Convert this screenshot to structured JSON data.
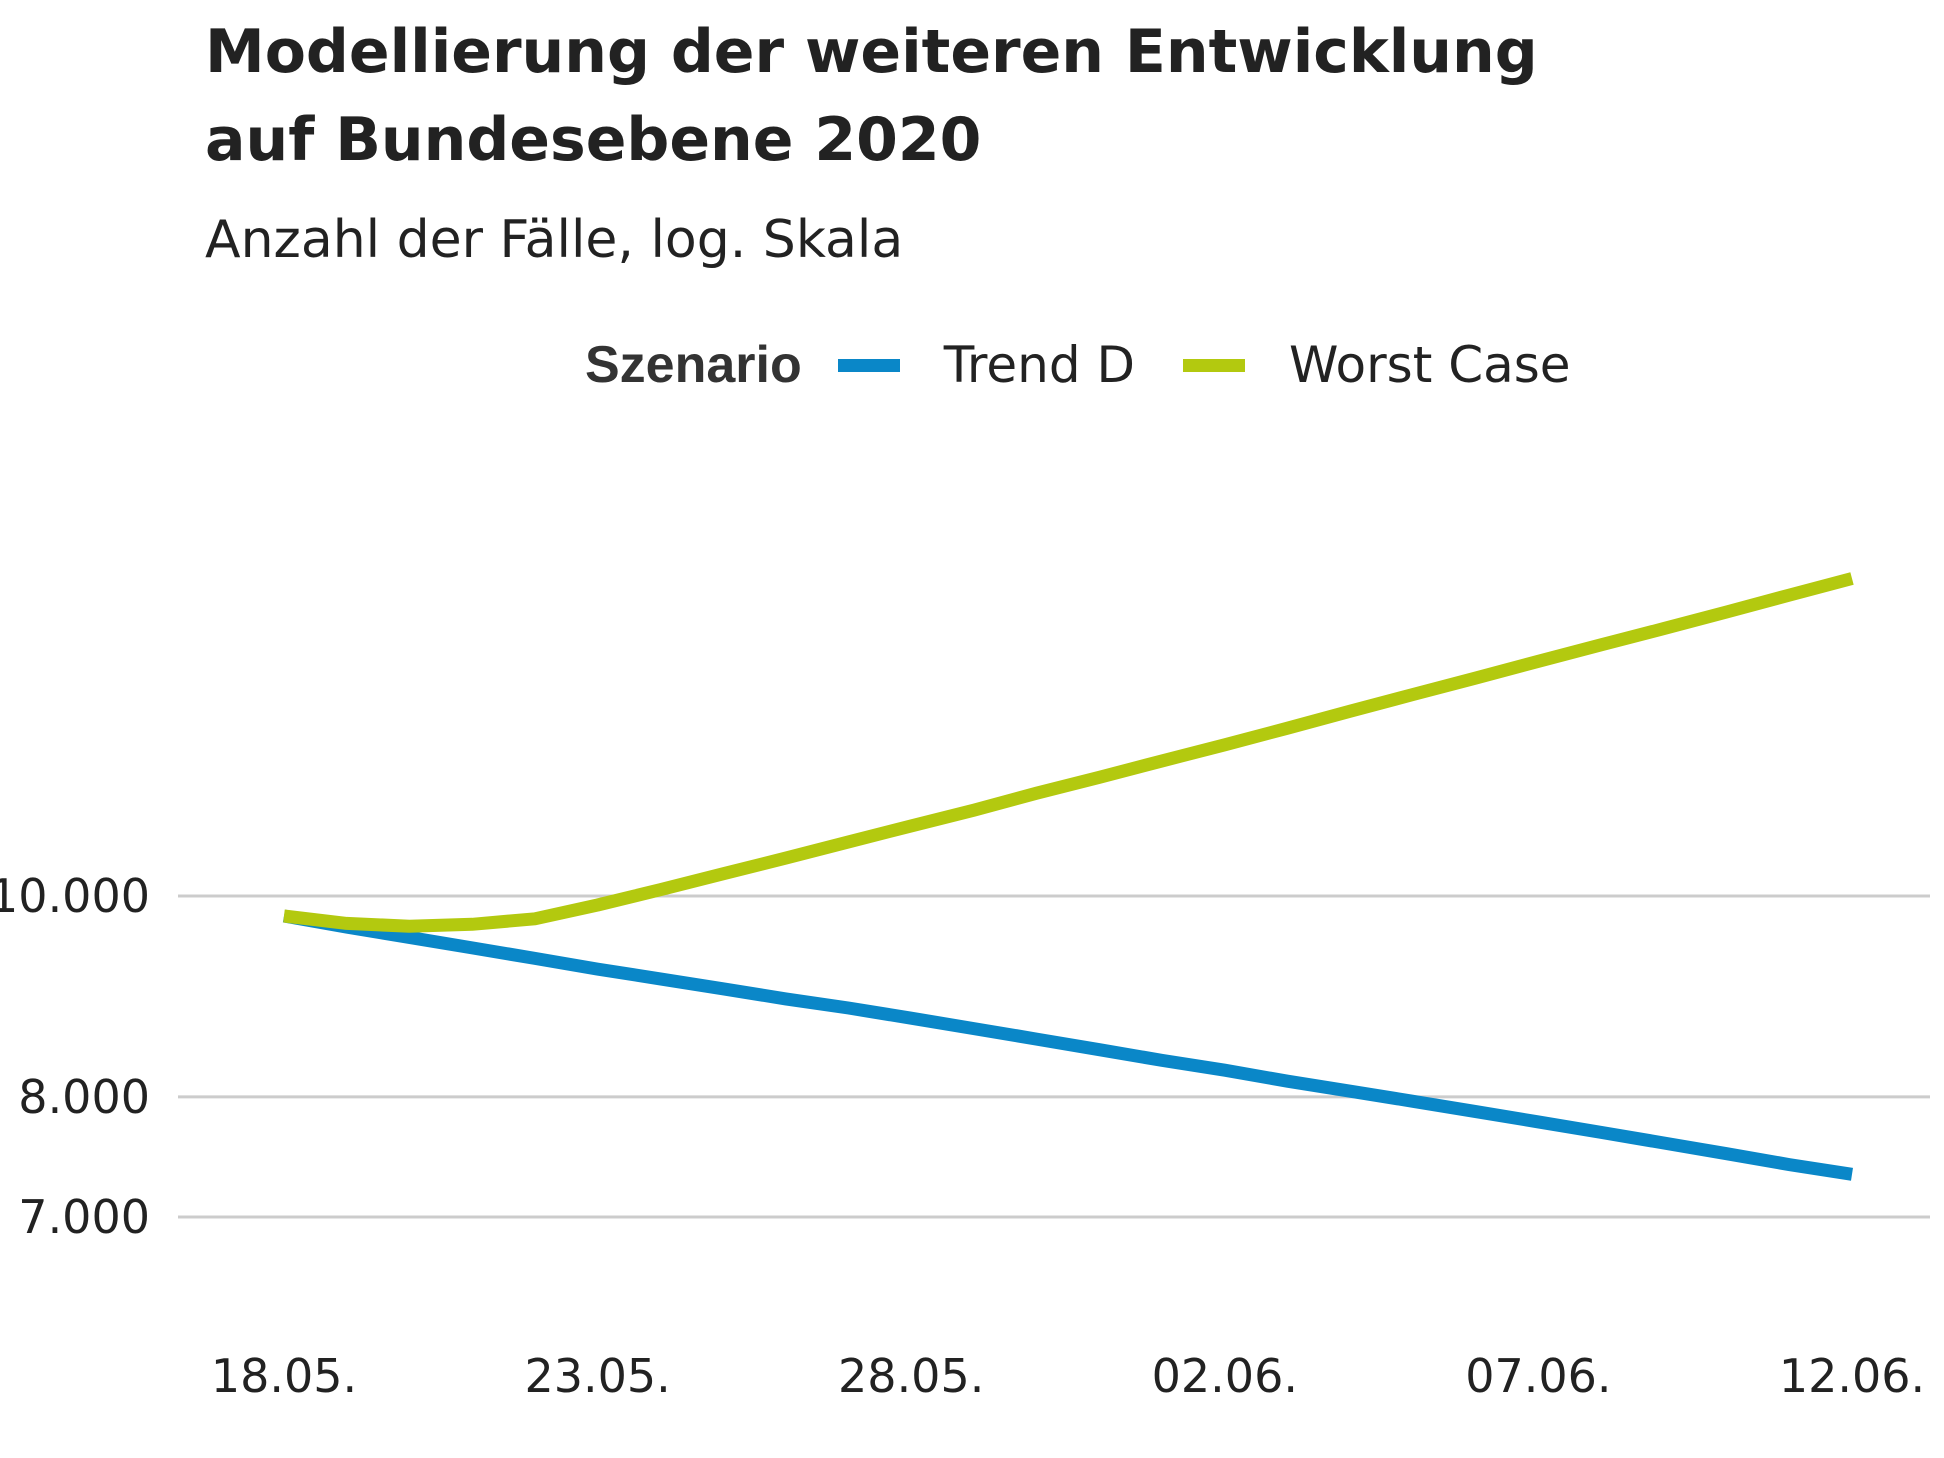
{
  "chart_data": {
    "type": "line",
    "title": "Modellierung der weiteren Entwicklung auf Bundesebene 2020",
    "title_lines": [
      "Modellierung der weiteren Entwicklung",
      "auf Bundesebene 2020"
    ],
    "subtitle": "Anzahl der Fälle, log. Skala",
    "legend_title": "Szenario",
    "legend_position": "top",
    "y_scale": "log",
    "grid": "horizontal",
    "x": [
      "18.05.",
      "19.05.",
      "20.05.",
      "21.05.",
      "22.05.",
      "23.05.",
      "24.05.",
      "25.05.",
      "26.05.",
      "27.05.",
      "28.05.",
      "29.05.",
      "30.05.",
      "31.05.",
      "01.06.",
      "02.06.",
      "03.06.",
      "04.06.",
      "05.06.",
      "06.06.",
      "07.06.",
      "08.06.",
      "09.06.",
      "10.06.",
      "11.06.",
      "12.06."
    ],
    "x_ticks": [
      "18.05.",
      "23.05.",
      "28.05.",
      "02.06.",
      "07.06.",
      "12.06."
    ],
    "y_ticks": [
      {
        "value": 7000,
        "label": "7.000"
      },
      {
        "value": 8000,
        "label": "8.000"
      },
      {
        "value": 10000,
        "label": "10.000"
      }
    ],
    "ylim": [
      6200,
      17500
    ],
    "series": [
      {
        "name": "Trend D",
        "color": "#0a87c8",
        "values": [
          9780,
          9660,
          9550,
          9440,
          9330,
          9220,
          9120,
          9020,
          8920,
          8830,
          8730,
          8630,
          8530,
          8430,
          8330,
          8240,
          8140,
          8050,
          7960,
          7870,
          7780,
          7690,
          7600,
          7510,
          7420,
          7340
        ]
      },
      {
        "name": "Worst Case",
        "color": "#b3c90f",
        "values": [
          9780,
          9700,
          9670,
          9690,
          9750,
          9900,
          10070,
          10250,
          10430,
          10620,
          10810,
          11000,
          11210,
          11410,
          11620,
          11830,
          12050,
          12280,
          12510,
          12740,
          12980,
          13220,
          13460,
          13710,
          13970,
          14230
        ]
      }
    ]
  }
}
